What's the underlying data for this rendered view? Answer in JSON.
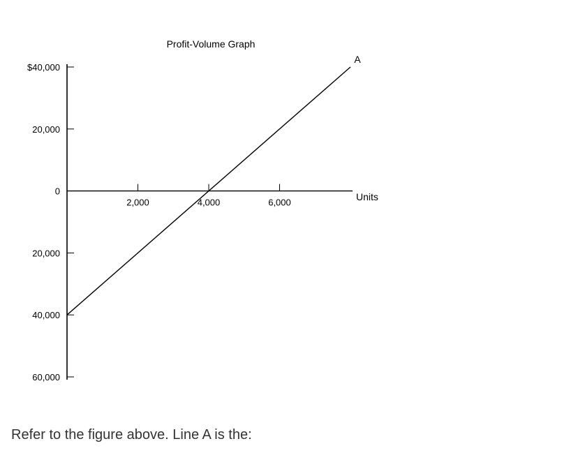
{
  "chart_data": {
    "type": "line",
    "title": "Profit-Volume Graph",
    "xlabel": "Units",
    "ylabel": "",
    "xlim": [
      0,
      8000
    ],
    "ylim": [
      -60000,
      40000
    ],
    "x_ticks": [
      {
        "value": 2000,
        "label": "2,000"
      },
      {
        "value": 4000,
        "label": "4,000"
      },
      {
        "value": 6000,
        "label": "6,000"
      }
    ],
    "y_ticks": [
      {
        "value": 40000,
        "label": "$40,000"
      },
      {
        "value": 20000,
        "label": "20,000"
      },
      {
        "value": 0,
        "label": "0"
      },
      {
        "value": -20000,
        "label": "20,000"
      },
      {
        "value": -40000,
        "label": "40,000"
      },
      {
        "value": -60000,
        "label": "60,000"
      }
    ],
    "series": [
      {
        "name": "A",
        "x": [
          0,
          8000
        ],
        "y": [
          -40000,
          40000
        ]
      }
    ],
    "grid": false,
    "legend": "none",
    "line_color": "#000000"
  },
  "question": {
    "text": "Refer to the figure above. Line A is the:"
  }
}
